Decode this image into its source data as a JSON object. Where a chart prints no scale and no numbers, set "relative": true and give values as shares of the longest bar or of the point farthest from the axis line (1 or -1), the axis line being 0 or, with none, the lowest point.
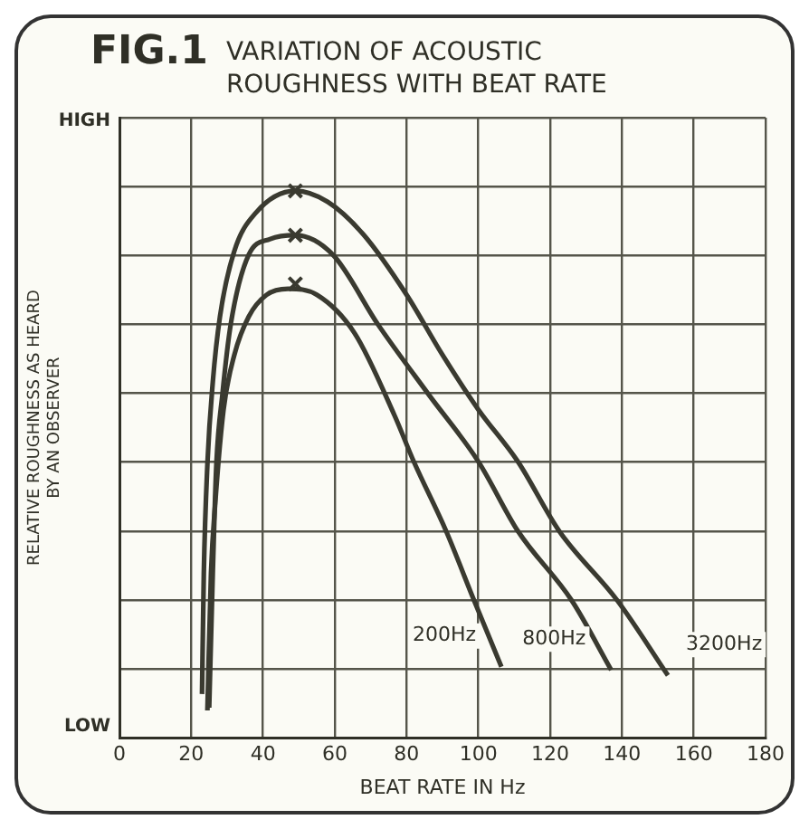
{
  "chart_data": {
    "type": "line",
    "title": "FIG.1 VARIATION OF ACOUSTIC ROUGHNESS WITH BEAT RATE",
    "xlabel": "BEAT RATE IN Hz",
    "ylabel": "RELATIVE ROUGHNESS AS HEARD BY AN OBSERVER",
    "relative": true,
    "xlim": [
      0,
      180
    ],
    "xticks": [
      0,
      20,
      40,
      60,
      80,
      100,
      120,
      140,
      160,
      180
    ],
    "grid": true,
    "legend": false,
    "annotations": [
      "HIGH",
      "LOW"
    ],
    "series": [
      {
        "name": "200Hz",
        "color": "#3a3a30",
        "marker": "none",
        "x": [
          24.5,
          25.5,
          26.7,
          29,
          32,
          36,
          41,
          47,
          55,
          65.5,
          76.6,
          82,
          91,
          98.8,
          106.4
        ],
        "values": [
          0.05,
          0.3,
          0.43,
          0.6,
          0.7,
          0.77,
          0.81,
          0.821,
          0.81,
          0.74,
          0.59,
          0.505,
          0.378,
          0.251,
          0.13
        ]
      },
      {
        "name": "800Hz",
        "color": "#3a3a30",
        "marker": "none",
        "x": [
          25,
          26,
          27,
          28.7,
          31,
          36,
          42,
          49,
          59.5,
          72,
          86,
          100,
          111,
          126,
          137
        ],
        "values": [
          0.055,
          0.3,
          0.5,
          0.629,
          0.756,
          0.883,
          0.912,
          0.919,
          0.883,
          0.756,
          0.629,
          0.505,
          0.378,
          0.251,
          0.124
        ]
      },
      {
        "name": "3200Hz",
        "color": "#3a3a30",
        "marker": "none",
        "x": [
          23,
          23.5,
          24.5,
          26,
          28,
          32,
          38,
          49,
          58,
          68,
          80,
          90,
          100,
          111,
          122.5,
          138.7,
          152.8
        ],
        "values": [
          0.08,
          0.3,
          0.5,
          0.65,
          0.77,
          0.89,
          0.96,
          1.0,
          0.98,
          0.92,
          0.81,
          0.7,
          0.6,
          0.505,
          0.378,
          0.251,
          0.114
        ]
      },
      {
        "type": "scatter",
        "color": "#3a3a30",
        "marker": "cross",
        "x": [
          49,
          49,
          49
        ],
        "values": [
          0.83,
          0.919,
          1.0
        ]
      }
    ]
  }
}
